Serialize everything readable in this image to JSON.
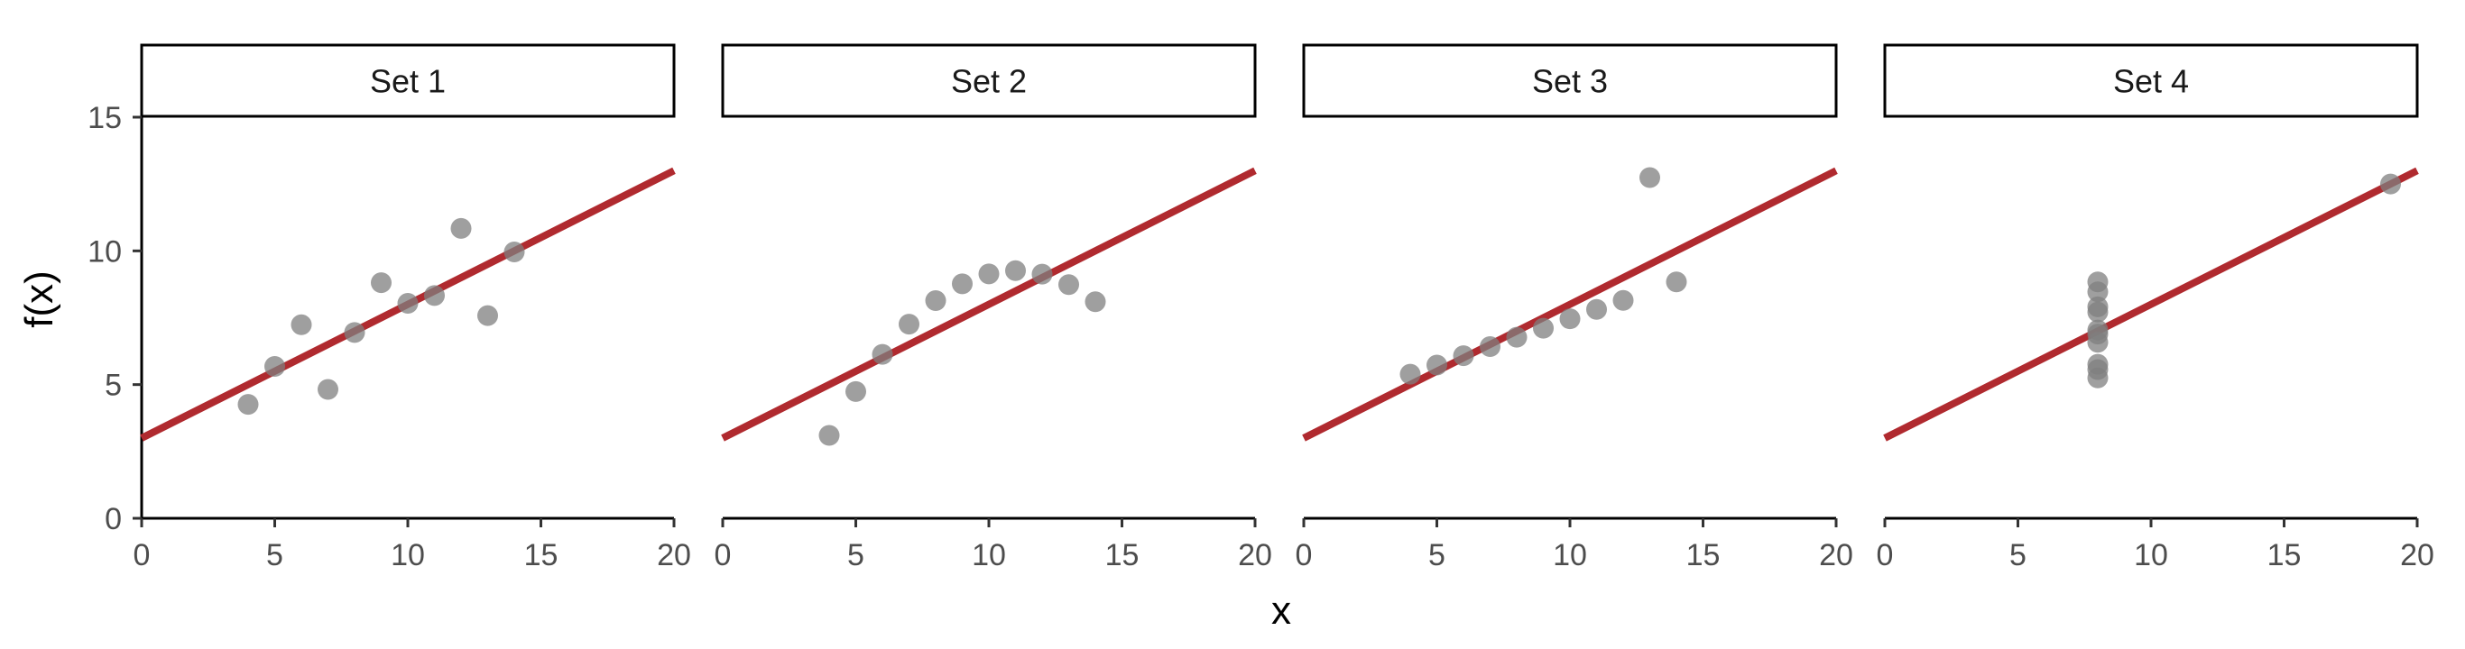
{
  "chart_data": {
    "type": "scatter",
    "xlabel": "x",
    "ylabel": "f(x)",
    "xlim": [
      0,
      20
    ],
    "ylim": [
      0,
      15
    ],
    "x_ticks": [
      0,
      5,
      10,
      15,
      20
    ],
    "y_ticks": [
      0,
      5,
      10,
      15
    ],
    "grid": false,
    "fit_line": {
      "intercept": 3,
      "slope": 0.5,
      "color": "#b02a2f"
    },
    "point_color": "#7f7f7f",
    "panels": [
      {
        "name": "Set 1",
        "x": [
          10,
          8,
          13,
          9,
          11,
          14,
          6,
          4,
          12,
          7,
          5
        ],
        "y": [
          8.04,
          6.95,
          7.58,
          8.81,
          8.33,
          9.96,
          7.24,
          4.26,
          10.84,
          4.82,
          5.68
        ]
      },
      {
        "name": "Set 2",
        "x": [
          10,
          8,
          13,
          9,
          11,
          14,
          6,
          4,
          12,
          7,
          5
        ],
        "y": [
          9.14,
          8.14,
          8.74,
          8.77,
          9.26,
          8.1,
          6.13,
          3.1,
          9.13,
          7.26,
          4.74
        ]
      },
      {
        "name": "Set 3",
        "x": [
          10,
          8,
          13,
          9,
          11,
          14,
          6,
          4,
          12,
          7,
          5
        ],
        "y": [
          7.46,
          6.77,
          12.74,
          7.11,
          7.81,
          8.84,
          6.08,
          5.39,
          8.15,
          6.42,
          5.73
        ]
      },
      {
        "name": "Set 4",
        "x": [
          8,
          8,
          8,
          8,
          8,
          8,
          8,
          19,
          8,
          8,
          8
        ],
        "y": [
          6.58,
          5.76,
          7.71,
          8.84,
          8.47,
          7.04,
          5.25,
          12.5,
          5.56,
          7.91,
          6.89
        ]
      }
    ]
  }
}
